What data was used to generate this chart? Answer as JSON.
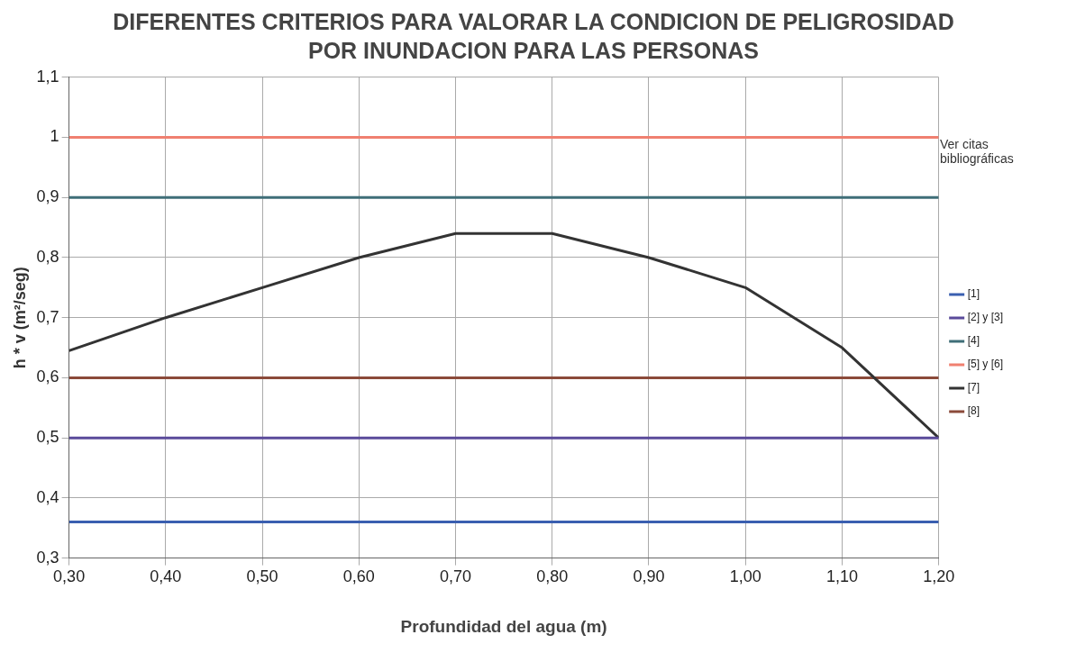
{
  "chart_data": {
    "type": "line",
    "title": "DIFERENTES CRITERIOS PARA VALORAR LA CONDICION DE PELIGROSIDAD POR INUNDACION PARA LAS PERSONAS",
    "xlabel": "Profundidad del agua (m)",
    "ylabel": "h * v (m²/seg)",
    "annotations": [
      "Ver citas bibliográficas"
    ],
    "xlim": [
      0.3,
      1.2
    ],
    "xticks": [
      {
        "value": 0.3,
        "label": "0,30"
      },
      {
        "value": 0.4,
        "label": "0,40"
      },
      {
        "value": 0.5,
        "label": "0,50"
      },
      {
        "value": 0.6,
        "label": "0,60"
      },
      {
        "value": 0.7,
        "label": "0,70"
      },
      {
        "value": 0.8,
        "label": "0,80"
      },
      {
        "value": 0.9,
        "label": "0,90"
      },
      {
        "value": 1.0,
        "label": "1,00"
      },
      {
        "value": 1.1,
        "label": "1,10"
      },
      {
        "value": 1.2,
        "label": "1,20"
      }
    ],
    "ylim": [
      0.3,
      1.1
    ],
    "yticks": [
      {
        "value": 0.3,
        "label": "0,3"
      },
      {
        "value": 0.4,
        "label": "0,4"
      },
      {
        "value": 0.5,
        "label": "0,5"
      },
      {
        "value": 0.6,
        "label": "0,6"
      },
      {
        "value": 0.7,
        "label": "0,7"
      },
      {
        "value": 0.8,
        "label": "0,8"
      },
      {
        "value": 0.9,
        "label": "0,9"
      },
      1,
      {
        "value": 1.1,
        "label": "1,1"
      }
    ],
    "grid": true,
    "legend": "right",
    "marker": "none",
    "line_style": "solid",
    "series": [
      {
        "name": "[1]",
        "color": "#3a5fb0",
        "x": [
          0.3,
          1.2
        ],
        "values": [
          0.36,
          0.36
        ]
      },
      {
        "name": "[2] y [3]",
        "color": "#5a4a9a",
        "x": [
          0.3,
          1.2
        ],
        "values": [
          0.5,
          0.5
        ]
      },
      {
        "name": "[4]",
        "color": "#3f6e78",
        "x": [
          0.3,
          1.2
        ],
        "values": [
          0.9,
          0.9
        ]
      },
      {
        "name": "[5] y [6]",
        "color": "#f08070",
        "x": [
          0.3,
          1.2
        ],
        "values": [
          1.0,
          1.0
        ]
      },
      {
        "name": "[7]",
        "color": "#333333",
        "x": [
          0.3,
          0.4,
          0.5,
          0.6,
          0.7,
          0.8,
          0.9,
          1.0,
          1.1,
          1.2
        ],
        "values": [
          0.645,
          0.7,
          0.75,
          0.8,
          0.84,
          0.84,
          0.8,
          0.75,
          0.65,
          0.5
        ]
      },
      {
        "name": "[8]",
        "color": "#8b4a3a",
        "x": [
          0.3,
          1.2
        ],
        "values": [
          0.6,
          0.6
        ]
      }
    ]
  }
}
